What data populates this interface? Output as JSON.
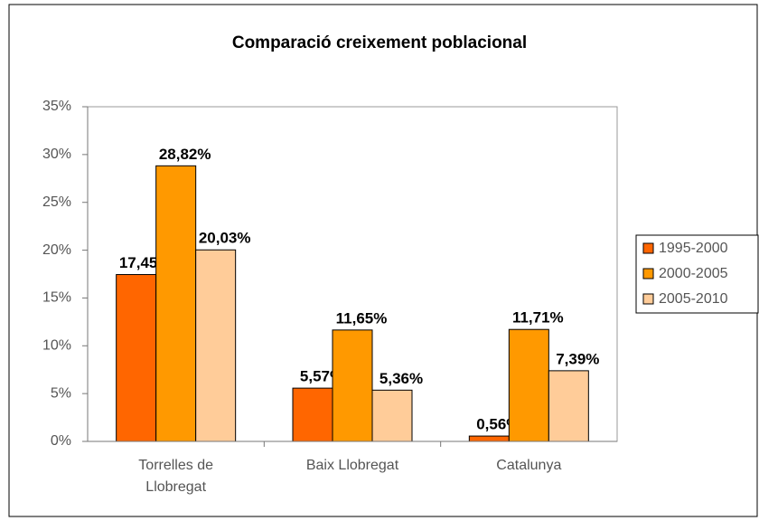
{
  "chart_data": {
    "type": "bar",
    "title": "Comparació creixement poblacional",
    "categories": [
      "Torrelles de Llobregat",
      "Baix Llobregat",
      "Catalunya"
    ],
    "series": [
      {
        "name": "1995-2000",
        "color": "#ff6600",
        "values": [
          17.45,
          5.57,
          0.56
        ],
        "value_labels": [
          "17,45%",
          "5,57%",
          "0,56%"
        ]
      },
      {
        "name": "2000-2005",
        "color": "#ff9900",
        "values": [
          28.82,
          11.65,
          11.71
        ],
        "value_labels": [
          "28,82%",
          "11,65%",
          "11,71%"
        ]
      },
      {
        "name": "2005-2010",
        "color": "#ffcc99",
        "values": [
          20.03,
          5.36,
          7.39
        ],
        "value_labels": [
          "20,03%",
          "5,36%",
          "7,39%"
        ]
      }
    ],
    "ylim": [
      0,
      35
    ],
    "yticks": [
      {
        "value": 0,
        "label": "0%"
      },
      {
        "value": 5,
        "label": "5%"
      },
      {
        "value": 10,
        "label": "10%"
      },
      {
        "value": 15,
        "label": "15%"
      },
      {
        "value": 20,
        "label": "20%"
      },
      {
        "value": 25,
        "label": "25%"
      },
      {
        "value": 30,
        "label": "30%"
      },
      {
        "value": 35,
        "label": "35%"
      }
    ],
    "legend": "right"
  }
}
